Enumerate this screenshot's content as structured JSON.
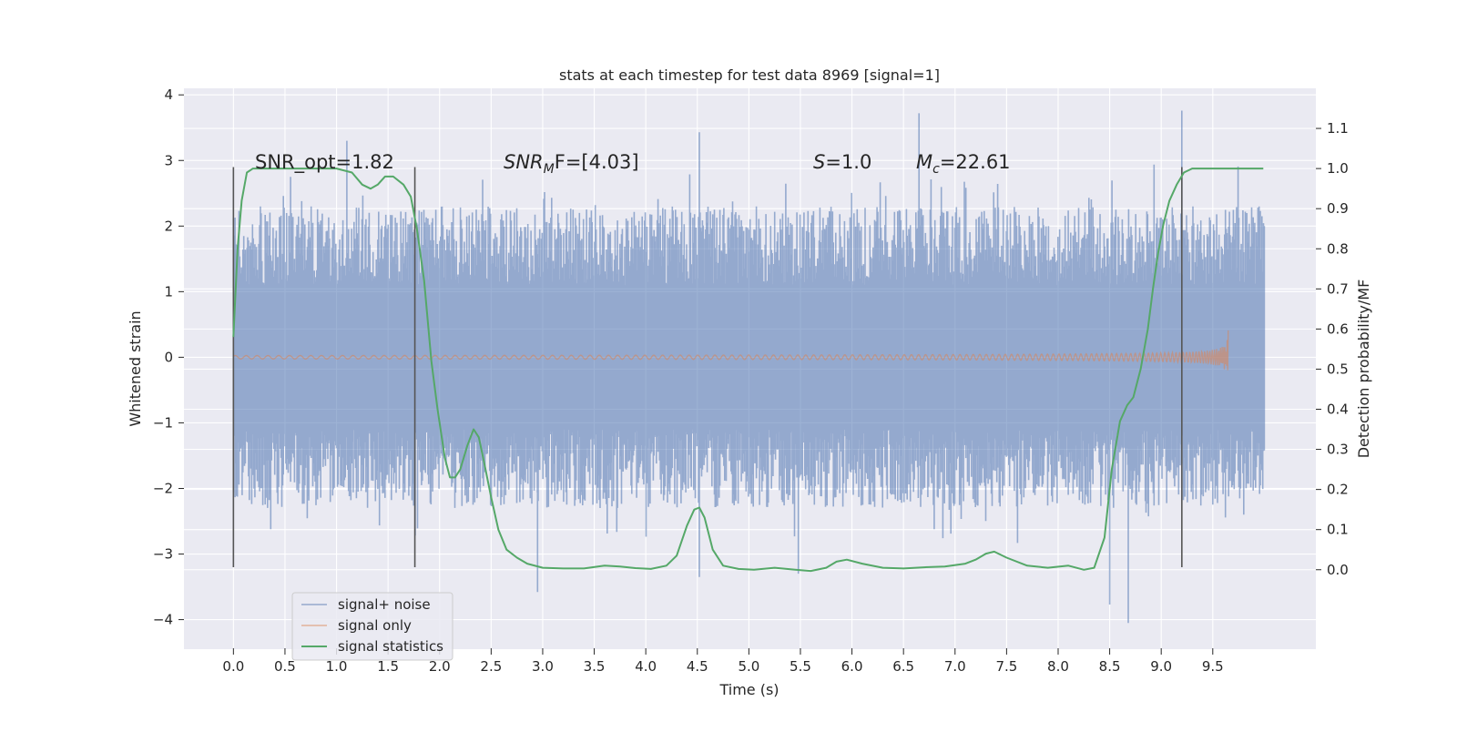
{
  "chart_data": {
    "type": "line",
    "title": "stats at each timestep for test data 8969 [signal=1]",
    "xlabel": "Time (s)",
    "ylabel": "Whitened strain",
    "y2label": "Detection probability/MF",
    "xlim": [
      -0.48,
      10.5
    ],
    "ylim": [
      -4.45,
      4.1
    ],
    "y2lim": [
      -0.198,
      1.2
    ],
    "x_ticks": [
      "0.0",
      "0.5",
      "1.0",
      "1.5",
      "2.0",
      "2.5",
      "3.0",
      "3.5",
      "4.0",
      "4.5",
      "5.0",
      "5.5",
      "6.0",
      "6.5",
      "7.0",
      "7.5",
      "8.0",
      "8.5",
      "9.0",
      "9.5"
    ],
    "y_ticks": [
      "−4",
      "−3",
      "−2",
      "−1",
      "0",
      "1",
      "2",
      "3",
      "4"
    ],
    "y2_ticks": [
      "0.0",
      "0.1",
      "0.2",
      "0.3",
      "0.4",
      "0.5",
      "0.6",
      "0.7",
      "0.8",
      "0.9",
      "1.0",
      "1.1"
    ],
    "grid": true,
    "legend_position": "lower-left",
    "annotations": {
      "snr_opt": "SNR_opt=1.82",
      "snr_mf_italic": "SNR",
      "snr_mf_sub": "M",
      "snr_mf_rest": "F=[4.03]",
      "s_italic": "S",
      "s_rest": "=1.0",
      "mc_italic": "M",
      "mc_sub": "c",
      "mc_rest": "=22.61"
    },
    "vertical_lines_x": [
      0.0,
      1.76,
      9.2
    ],
    "series": [
      {
        "name": "signal+ noise",
        "color": "#4c72b0",
        "kind": "noise",
        "x_range": [
          0.0,
          10.0
        ],
        "core_band": [
          -1.1,
          1.1
        ],
        "typical_extremes": [
          -2.3,
          2.3
        ],
        "max_peaks": [
          [
            1.1,
            3.3
          ],
          [
            4.52,
            3.43
          ],
          [
            6.65,
            3.72
          ],
          [
            9.2,
            3.76
          ],
          [
            9.95,
            2.3
          ]
        ],
        "min_peaks": [
          [
            2.95,
            -3.58
          ],
          [
            4.52,
            -3.35
          ],
          [
            5.48,
            -3.3
          ],
          [
            8.5,
            -3.77
          ],
          [
            8.68,
            -4.05
          ],
          [
            9.8,
            -2.4
          ]
        ]
      },
      {
        "name": "signal only",
        "color": "#dd8452",
        "kind": "chirp",
        "x_range": [
          0.0,
          9.65
        ],
        "peak_amplitude": 0.45,
        "merger_time": 9.65
      },
      {
        "name": "signal statistics",
        "color": "#55a868",
        "axis": "right",
        "x": [
          0.0,
          0.04,
          0.08,
          0.13,
          0.19,
          0.26,
          0.4,
          0.6,
          0.8,
          1.0,
          1.15,
          1.25,
          1.33,
          1.4,
          1.47,
          1.55,
          1.65,
          1.72,
          1.78,
          1.85,
          1.92,
          1.98,
          2.05,
          2.1,
          2.15,
          2.2,
          2.27,
          2.33,
          2.38,
          2.43,
          2.5,
          2.57,
          2.65,
          2.75,
          2.85,
          3.0,
          3.2,
          3.4,
          3.6,
          3.75,
          3.9,
          4.05,
          4.2,
          4.3,
          4.4,
          4.47,
          4.52,
          4.57,
          4.65,
          4.75,
          4.9,
          5.05,
          5.25,
          5.45,
          5.6,
          5.75,
          5.85,
          5.95,
          6.1,
          6.3,
          6.5,
          6.7,
          6.9,
          7.1,
          7.2,
          7.3,
          7.38,
          7.5,
          7.7,
          7.9,
          8.1,
          8.25,
          8.35,
          8.45,
          8.52,
          8.6,
          8.67,
          8.73,
          8.8,
          8.87,
          8.92,
          8.97,
          9.02,
          9.08,
          9.15,
          9.22,
          9.3,
          9.38,
          9.46,
          9.55,
          9.65,
          9.8,
          9.99
        ],
        "y": [
          0.58,
          0.8,
          0.92,
          0.99,
          1.0,
          1.0,
          1.0,
          1.0,
          1.0,
          1.0,
          0.99,
          0.96,
          0.95,
          0.96,
          0.98,
          0.98,
          0.96,
          0.93,
          0.85,
          0.72,
          0.52,
          0.4,
          0.28,
          0.23,
          0.23,
          0.25,
          0.31,
          0.35,
          0.33,
          0.27,
          0.18,
          0.1,
          0.05,
          0.03,
          0.015,
          0.005,
          0.003,
          0.003,
          0.01,
          0.008,
          0.004,
          0.002,
          0.01,
          0.035,
          0.11,
          0.15,
          0.155,
          0.13,
          0.05,
          0.01,
          0.002,
          0.0,
          0.005,
          0.0,
          -0.003,
          0.005,
          0.02,
          0.025,
          0.015,
          0.005,
          0.003,
          0.006,
          0.008,
          0.015,
          0.025,
          0.04,
          0.045,
          0.03,
          0.01,
          0.005,
          0.01,
          0.0,
          0.005,
          0.08,
          0.25,
          0.37,
          0.41,
          0.43,
          0.5,
          0.6,
          0.7,
          0.79,
          0.86,
          0.92,
          0.96,
          0.99,
          1.0,
          1.0,
          1.0,
          1.0,
          1.0,
          1.0,
          1.0
        ]
      }
    ]
  }
}
